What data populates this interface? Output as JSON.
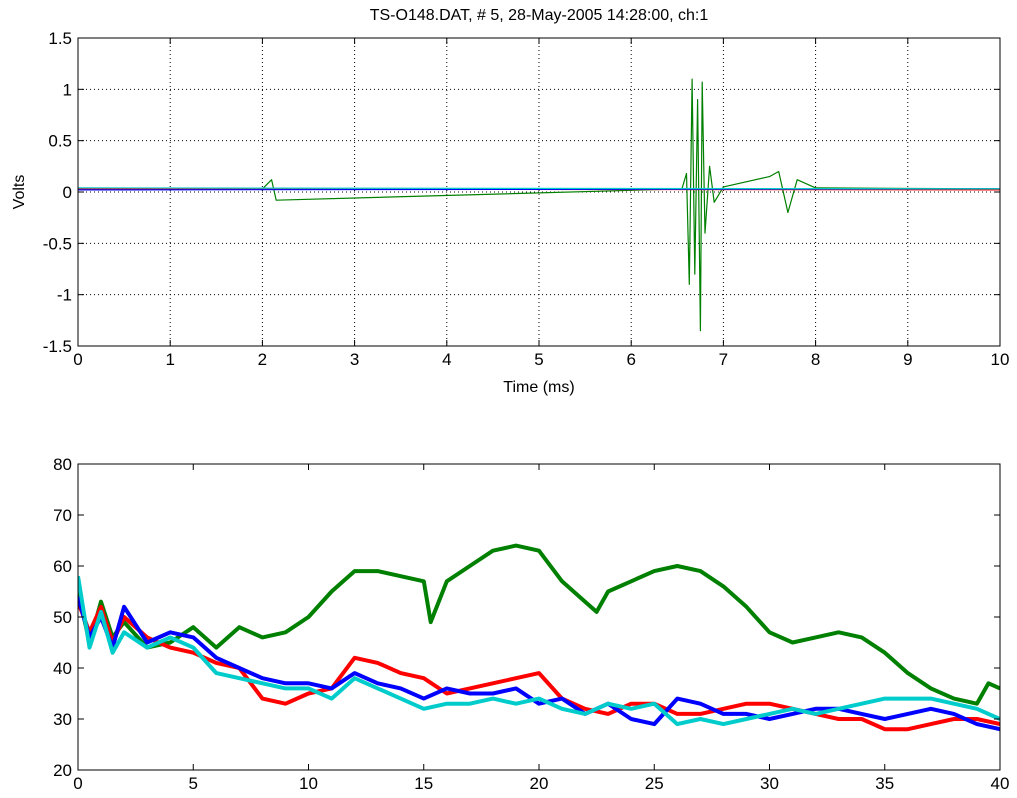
{
  "chart_data": [
    {
      "type": "line",
      "title": "TS-O148.DAT, #  5, 28-May-2005 14:28:00, ch:1",
      "xlabel": "Time (ms)",
      "ylabel": "Volts",
      "xlim": [
        0,
        10
      ],
      "ylim": [
        -1.5,
        1.5
      ],
      "xticks": [
        "0",
        "1",
        "2",
        "3",
        "4",
        "5",
        "6",
        "7",
        "8",
        "9",
        "10"
      ],
      "yticks": [
        "1.5",
        "1",
        "0.5",
        "0",
        "-0.5",
        "-1",
        "-1.5"
      ],
      "grid": true,
      "series": [
        {
          "color": "#008000",
          "x": [
            0,
            2.0,
            2.1,
            2.15,
            6.55,
            6.6,
            6.63,
            6.66,
            6.69,
            6.72,
            6.75,
            6.77,
            6.8,
            6.85,
            6.9,
            7.0,
            7.5,
            7.6,
            7.7,
            7.8,
            8.0,
            10
          ],
          "y": [
            0.03,
            0.03,
            0.12,
            -0.08,
            0.03,
            0.18,
            -0.9,
            1.1,
            -0.8,
            0.9,
            -1.35,
            1.07,
            -0.4,
            0.25,
            -0.1,
            0.05,
            0.15,
            0.2,
            -0.2,
            0.12,
            0.04,
            0.03
          ]
        },
        {
          "color": "#ff0000",
          "x": [
            0,
            10
          ],
          "y": [
            0.03,
            0.02
          ]
        },
        {
          "color": "#0000ff",
          "x": [
            0,
            10
          ],
          "y": [
            0.02,
            0.03
          ]
        },
        {
          "color": "#00cccc",
          "x": [
            0,
            10
          ],
          "y": [
            0.04,
            0.03
          ]
        }
      ]
    },
    {
      "type": "line",
      "title": "",
      "xlabel": "",
      "ylabel": "",
      "xlim": [
        0,
        40
      ],
      "ylim": [
        20,
        80
      ],
      "xticks": [
        "0",
        "5",
        "10",
        "15",
        "20",
        "25",
        "30",
        "35",
        "40"
      ],
      "yticks": [
        "80",
        "70",
        "60",
        "50",
        "40",
        "30",
        "20"
      ],
      "grid": false,
      "series": [
        {
          "color": "#008000",
          "x": [
            0,
            0.5,
            1,
            1.5,
            2,
            3,
            4,
            5,
            6,
            7,
            8,
            9,
            10,
            11,
            12,
            13,
            14,
            15,
            15.3,
            16,
            17,
            18,
            19,
            20,
            21,
            22,
            22.5,
            23,
            24,
            25,
            26,
            27,
            28,
            29,
            30,
            31,
            32,
            33,
            34,
            35,
            36,
            37,
            38,
            39,
            39.5,
            40
          ],
          "y": [
            55,
            45,
            53,
            46,
            49,
            44,
            45,
            48,
            44,
            48,
            46,
            47,
            50,
            55,
            59,
            59,
            58,
            57,
            49,
            57,
            60,
            63,
            64,
            63,
            57,
            53,
            51,
            55,
            57,
            59,
            60,
            59,
            56,
            52,
            47,
            45,
            46,
            47,
            46,
            43,
            39,
            36,
            34,
            33,
            37,
            36
          ]
        },
        {
          "color": "#ff0000",
          "x": [
            0,
            0.5,
            1,
            1.5,
            2,
            3,
            4,
            5,
            6,
            7,
            8,
            9,
            10,
            11,
            12,
            13,
            14,
            15,
            16,
            17,
            18,
            19,
            20,
            21,
            22,
            23,
            24,
            25,
            26,
            27,
            28,
            29,
            30,
            31,
            32,
            33,
            34,
            35,
            36,
            37,
            38,
            39,
            40
          ],
          "y": [
            53,
            47,
            52,
            45,
            50,
            46,
            44,
            43,
            41,
            40,
            34,
            33,
            35,
            36,
            42,
            41,
            39,
            38,
            35,
            36,
            37,
            38,
            39,
            34,
            32,
            31,
            33,
            33,
            31,
            31,
            32,
            33,
            33,
            32,
            31,
            30,
            30,
            28,
            28,
            29,
            30,
            30,
            29
          ]
        },
        {
          "color": "#0000ff",
          "x": [
            0,
            0.5,
            1,
            1.5,
            2,
            3,
            4,
            5,
            6,
            7,
            8,
            9,
            10,
            11,
            12,
            13,
            14,
            15,
            16,
            17,
            18,
            19,
            20,
            21,
            22,
            23,
            24,
            25,
            26,
            27,
            28,
            29,
            30,
            31,
            32,
            33,
            34,
            35,
            36,
            37,
            38,
            39,
            40
          ],
          "y": [
            54,
            46,
            50,
            44,
            52,
            45,
            47,
            46,
            42,
            40,
            38,
            37,
            37,
            36,
            39,
            37,
            36,
            34,
            36,
            35,
            35,
            36,
            33,
            34,
            31,
            33,
            30,
            29,
            34,
            33,
            31,
            31,
            30,
            31,
            32,
            32,
            31,
            30,
            31,
            32,
            31,
            29,
            28
          ]
        },
        {
          "color": "#00cccc",
          "x": [
            0,
            0.5,
            1,
            1.5,
            2,
            3,
            4,
            5,
            6,
            7,
            8,
            9,
            10,
            11,
            12,
            13,
            14,
            15,
            16,
            17,
            18,
            19,
            20,
            21,
            22,
            23,
            24,
            25,
            26,
            27,
            28,
            29,
            30,
            31,
            32,
            33,
            34,
            35,
            36,
            37,
            38,
            39,
            40
          ],
          "y": [
            58,
            44,
            51,
            43,
            47,
            44,
            46,
            44,
            39,
            38,
            37,
            36,
            36,
            34,
            38,
            36,
            34,
            32,
            33,
            33,
            34,
            33,
            34,
            32,
            31,
            33,
            32,
            33,
            29,
            30,
            29,
            30,
            31,
            32,
            31,
            32,
            33,
            34,
            34,
            34,
            33,
            32,
            30
          ]
        }
      ]
    }
  ]
}
